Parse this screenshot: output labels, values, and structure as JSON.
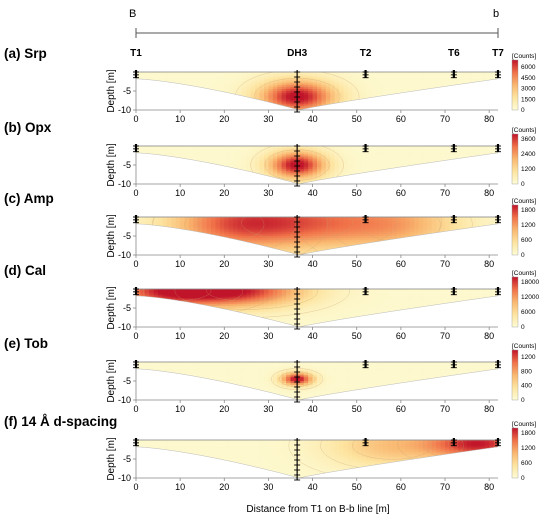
{
  "section_line": {
    "start_label": "B",
    "end_label": "b"
  },
  "x_axis_label": "Distance from T1 on B-b line [m]",
  "chart_data": [
    {
      "type": "heatmap",
      "title": "(a) Srp",
      "ylabel": "Depth [m]",
      "xlim": [
        0,
        82
      ],
      "ylim": [
        -10,
        0
      ],
      "x_ticks": [
        "0",
        "10",
        "20",
        "30",
        "40",
        "50",
        "60",
        "70",
        "80"
      ],
      "y_ticks": [
        "-5",
        "-10"
      ],
      "boreholes": [
        {
          "name": "T1",
          "x": 0
        },
        {
          "name": "DH3",
          "x": 36.5
        },
        {
          "name": "T2",
          "x": 52
        },
        {
          "name": "T6",
          "x": 72
        },
        {
          "name": "T7",
          "x": 82
        }
      ],
      "colorbar": {
        "title": "[Counts]",
        "min": 0,
        "max": 7000,
        "ticks": [
          "6000",
          "4500",
          "3000",
          "1500",
          "0"
        ]
      },
      "hotspots": [
        {
          "x": 36.5,
          "depth": -6.5,
          "intensity": 1.0,
          "sx": 6,
          "sy": 3
        }
      ]
    },
    {
      "type": "heatmap",
      "title": "(b) Opx",
      "ylabel": "Depth [m]",
      "xlim": [
        0,
        82
      ],
      "ylim": [
        -10,
        0
      ],
      "x_ticks": [
        "0",
        "10",
        "20",
        "30",
        "40",
        "50",
        "60",
        "70",
        "80"
      ],
      "y_ticks": [
        "-5",
        "-10"
      ],
      "colorbar": {
        "title": "[Counts]",
        "min": 0,
        "max": 4000,
        "ticks": [
          "3600",
          "2400",
          "1200",
          "0"
        ]
      },
      "hotspots": [
        {
          "x": 36.5,
          "depth": -5.0,
          "intensity": 1.0,
          "sx": 4.5,
          "sy": 2.5
        }
      ]
    },
    {
      "type": "heatmap",
      "title": "(c) Amp",
      "ylabel": "Depth [m]",
      "xlim": [
        0,
        82
      ],
      "ylim": [
        -10,
        0
      ],
      "x_ticks": [
        "0",
        "10",
        "20",
        "30",
        "40",
        "50",
        "60",
        "70",
        "80"
      ],
      "y_ticks": [
        "-5",
        "-10"
      ],
      "colorbar": {
        "title": "[Counts]",
        "min": 0,
        "max": 2000,
        "ticks": [
          "1800",
          "1200",
          "600",
          "0"
        ]
      },
      "hotspots": [
        {
          "x": 36.5,
          "depth": -1.5,
          "intensity": 0.7,
          "sx": 14,
          "sy": 5
        },
        {
          "x": 20,
          "depth": -2.0,
          "intensity": 0.45,
          "sx": 10,
          "sy": 5
        },
        {
          "x": 60,
          "depth": -2.0,
          "intensity": 0.4,
          "sx": 10,
          "sy": 5
        }
      ]
    },
    {
      "type": "heatmap",
      "title": "(d) Cal",
      "ylabel": "Depth [m]",
      "xlim": [
        0,
        82
      ],
      "ylim": [
        -10,
        0
      ],
      "x_ticks": [
        "0",
        "10",
        "20",
        "30",
        "40",
        "50",
        "60",
        "70",
        "80"
      ],
      "y_ticks": [
        "-5",
        "-10"
      ],
      "colorbar": {
        "title": "[Counts]",
        "min": 0,
        "max": 20000,
        "ticks": [
          "18000",
          "12000",
          "6000",
          "0"
        ]
      },
      "hotspots": [
        {
          "x": 8,
          "depth": -0.5,
          "intensity": 0.9,
          "sx": 10,
          "sy": 3
        },
        {
          "x": 25,
          "depth": -0.5,
          "intensity": 0.75,
          "sx": 10,
          "sy": 3
        }
      ]
    },
    {
      "type": "heatmap",
      "title": "(e) Tob",
      "ylabel": "Depth [m]",
      "xlim": [
        0,
        82
      ],
      "ylim": [
        -10,
        0
      ],
      "x_ticks": [
        "0",
        "10",
        "20",
        "30",
        "40",
        "50",
        "60",
        "70",
        "80"
      ],
      "y_ticks": [
        "-5",
        "-10"
      ],
      "colorbar": {
        "title": "[Counts]",
        "min": 0,
        "max": 1400,
        "ticks": [
          "1200",
          "800",
          "400",
          "0"
        ]
      },
      "hotspots": [
        {
          "x": 36.5,
          "depth": -4.5,
          "intensity": 1.0,
          "sx": 2.5,
          "sy": 1.2
        }
      ]
    },
    {
      "type": "heatmap",
      "title": "(f) 14 Å d-spacing",
      "ylabel": "Depth [m]",
      "xlim": [
        0,
        82
      ],
      "ylim": [
        -10,
        0
      ],
      "x_ticks": [
        "0",
        "10",
        "20",
        "30",
        "40",
        "50",
        "60",
        "70",
        "80"
      ],
      "y_ticks": [
        "-5",
        "-10"
      ],
      "colorbar": {
        "title": "[Counts]",
        "min": 0,
        "max": 2000,
        "ticks": [
          "1800",
          "1200",
          "600",
          "0"
        ]
      },
      "hotspots": [
        {
          "x": 78,
          "depth": -1.0,
          "intensity": 0.9,
          "sx": 8,
          "sy": 3
        },
        {
          "x": 58,
          "depth": -1.5,
          "intensity": 0.4,
          "sx": 10,
          "sy": 4
        }
      ]
    }
  ]
}
